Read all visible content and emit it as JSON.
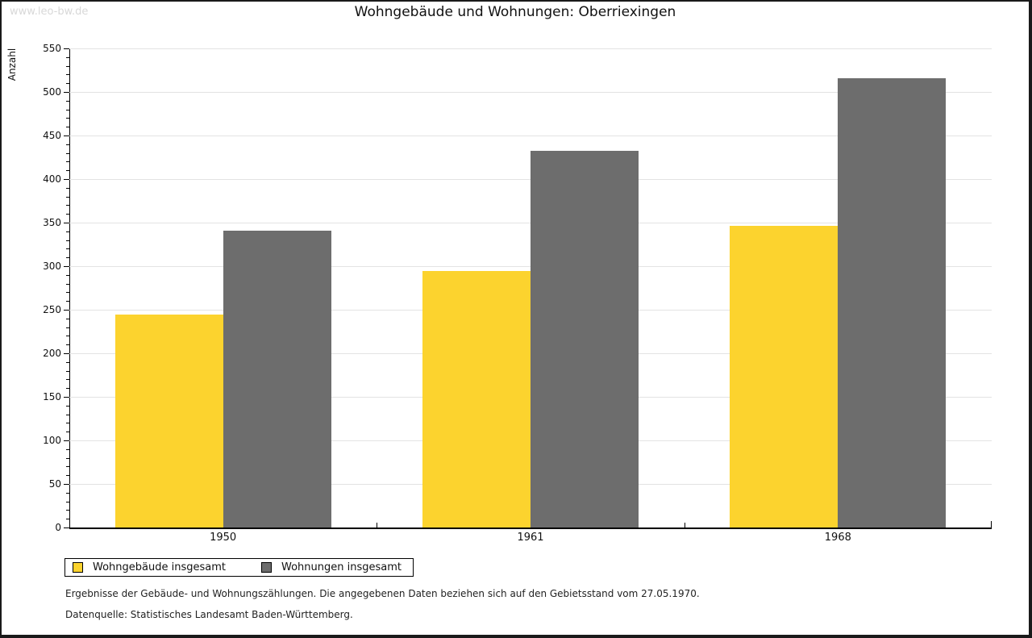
{
  "watermark": "www.leo-bw.de",
  "title": "Wohngebäude und Wohnungen: Oberriexingen",
  "y_axis_title": "Anzahl",
  "chart_data": {
    "type": "bar",
    "title": "Wohngebäude und Wohnungen: Oberriexingen",
    "xlabel": "",
    "ylabel": "Anzahl",
    "categories": [
      "1950",
      "1961",
      "1968"
    ],
    "series": [
      {
        "name": "Wohngebäude insgesamt",
        "color": "#fcd32e",
        "values": [
          244,
          294,
          346
        ]
      },
      {
        "name": "Wohnungen insgesamt",
        "color": "#6d6d6d",
        "values": [
          341,
          432,
          516
        ]
      }
    ],
    "ylim": [
      0,
      550
    ],
    "y_major_step": 50,
    "y_minor_step": 10,
    "grid": true,
    "legend_position": "bottom-left"
  },
  "legend": {
    "items": [
      {
        "label": "Wohngebäude insgesamt",
        "color": "#fcd32e"
      },
      {
        "label": "Wohnungen insgesamt",
        "color": "#6d6d6d"
      }
    ]
  },
  "footnotes": [
    "Ergebnisse der Gebäude- und Wohnungszählungen. Die angegebenen Daten beziehen sich auf den Gebietsstand vom 27.05.1970.",
    "Datenquelle: Statistisches Landesamt Baden-Württemberg."
  ],
  "colors": {
    "bar_yellow": "#fcd32e",
    "bar_gray": "#6d6d6d",
    "gridline": "#e3e3e3",
    "axis": "#000000",
    "watermark": "#d8d8d8",
    "frame": "#1a1a1a"
  }
}
